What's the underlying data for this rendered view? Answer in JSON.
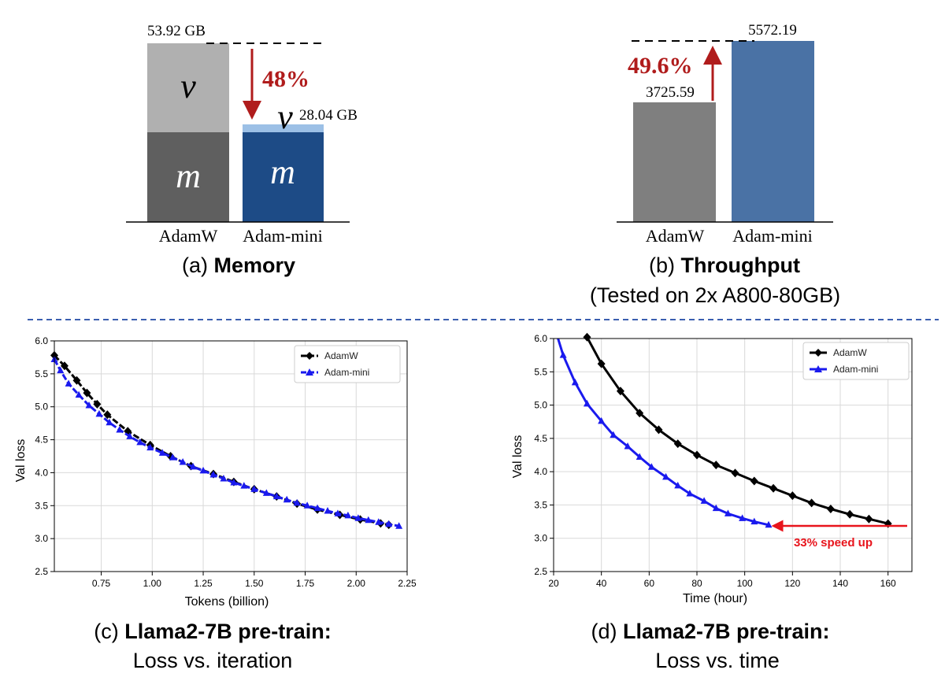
{
  "chart_data": [
    {
      "type": "bar",
      "panel": "a",
      "caption_prefix": "(a)",
      "caption_bold": "Memory",
      "categories": [
        "AdamW",
        "Adam-mini"
      ],
      "series": [
        {
          "name": "m",
          "values": [
            26.96,
            26.96
          ]
        },
        {
          "name": "v",
          "values": [
            26.96,
            1.08
          ]
        }
      ],
      "total_labels": [
        "53.92 GB",
        "28.04 GB"
      ],
      "annotation": "48%",
      "colors": {
        "adamw_m": "#5f5f5f",
        "adamw_v": "#b0b0b0",
        "mini_m": "#1d4b86",
        "mini_v": "#9cc0e6",
        "arrow": "#b01c1c"
      }
    },
    {
      "type": "bar",
      "panel": "b",
      "caption_prefix": "(b)",
      "caption_bold": "Throughput",
      "caption_sub": "(Tested on 2x A800-80GB)",
      "categories": [
        "AdamW",
        "Adam-mini"
      ],
      "values": [
        3725.59,
        5572.19
      ],
      "value_labels": [
        "3725.59",
        "5572.19"
      ],
      "annotation": "49.6%",
      "colors": {
        "adamw": "#7f7f7f",
        "mini": "#4a72a5",
        "arrow": "#b01c1c"
      }
    },
    {
      "type": "line",
      "panel": "c",
      "caption_prefix": "(c)",
      "caption_bold": "Llama2-7B pre-train:",
      "caption_sub": "Loss vs. iteration",
      "xlabel": "Tokens (billion)",
      "ylabel": "Val loss",
      "xlim": [
        0.52,
        2.25
      ],
      "ylim": [
        2.5,
        6.0
      ],
      "xticks": [
        "0.75",
        "1.00",
        "1.25",
        "1.50",
        "1.75",
        "2.00",
        "2.25"
      ],
      "yticks": [
        "2.5",
        "3.0",
        "3.5",
        "4.0",
        "4.5",
        "5.0",
        "5.5",
        "6.0"
      ],
      "grid": true,
      "legend": "top-right",
      "series": [
        {
          "name": "AdamW",
          "color": "#000000",
          "marker": "diamond",
          "x": [
            0.52,
            0.57,
            0.63,
            0.68,
            0.73,
            0.78,
            0.88,
            0.99,
            1.09,
            1.19,
            1.3,
            1.4,
            1.5,
            1.61,
            1.71,
            1.81,
            1.92,
            2.02,
            2.12,
            2.16
          ],
          "y": [
            5.78,
            5.62,
            5.4,
            5.21,
            5.04,
            4.88,
            4.63,
            4.42,
            4.25,
            4.1,
            3.98,
            3.86,
            3.75,
            3.64,
            3.53,
            3.44,
            3.36,
            3.29,
            3.23,
            3.21
          ]
        },
        {
          "name": "Adam-mini",
          "color": "#1a1aee",
          "marker": "triangle",
          "x": [
            0.52,
            0.55,
            0.59,
            0.64,
            0.69,
            0.74,
            0.79,
            0.84,
            0.89,
            0.94,
            0.99,
            1.05,
            1.1,
            1.15,
            1.2,
            1.25,
            1.3,
            1.35,
            1.4,
            1.45,
            1.5,
            1.56,
            1.61,
            1.66,
            1.71,
            1.76,
            1.81,
            1.86,
            1.91,
            1.96,
            2.01,
            2.06,
            2.11,
            2.16,
            2.21
          ],
          "y": [
            5.72,
            5.55,
            5.35,
            5.18,
            5.02,
            4.89,
            4.76,
            4.65,
            4.55,
            4.46,
            4.38,
            4.3,
            4.23,
            4.16,
            4.09,
            4.03,
            3.97,
            3.91,
            3.85,
            3.8,
            3.75,
            3.69,
            3.64,
            3.59,
            3.54,
            3.5,
            3.46,
            3.42,
            3.38,
            3.35,
            3.31,
            3.28,
            3.25,
            3.22,
            3.19
          ]
        }
      ]
    },
    {
      "type": "line",
      "panel": "d",
      "caption_prefix": "(d)",
      "caption_bold": "Llama2-7B pre-train:",
      "caption_sub": "Loss vs. time",
      "xlabel": "Time (hour)",
      "ylabel": "Val loss",
      "xlim": [
        20,
        170
      ],
      "ylim": [
        2.5,
        6.0
      ],
      "xticks": [
        "20",
        "40",
        "60",
        "80",
        "100",
        "120",
        "140",
        "160"
      ],
      "yticks": [
        "2.5",
        "3.0",
        "3.5",
        "4.0",
        "4.5",
        "5.0",
        "5.5",
        "6.0"
      ],
      "grid": true,
      "legend": "top-right",
      "annotation": "33% speed up",
      "series": [
        {
          "name": "AdamW",
          "color": "#000000",
          "marker": "diamond",
          "x": [
            34,
            40,
            48,
            56,
            64,
            72,
            80,
            88,
            96,
            104,
            112,
            120,
            128,
            136,
            144,
            152,
            160
          ],
          "y": [
            6.02,
            5.62,
            5.21,
            4.88,
            4.63,
            4.42,
            4.25,
            4.1,
            3.98,
            3.86,
            3.75,
            3.64,
            3.53,
            3.44,
            3.36,
            3.29,
            3.22
          ]
        },
        {
          "name": "Adam-mini",
          "color": "#1a1aee",
          "marker": "triangle",
          "x": [
            21,
            24,
            29,
            34,
            40,
            45,
            51,
            56,
            61,
            67,
            72,
            77,
            83,
            88,
            93,
            99,
            104,
            110
          ],
          "y": [
            6.1,
            5.75,
            5.34,
            5.02,
            4.76,
            4.55,
            4.38,
            4.22,
            4.07,
            3.92,
            3.79,
            3.67,
            3.56,
            3.45,
            3.37,
            3.3,
            3.25,
            3.2
          ]
        }
      ]
    }
  ]
}
